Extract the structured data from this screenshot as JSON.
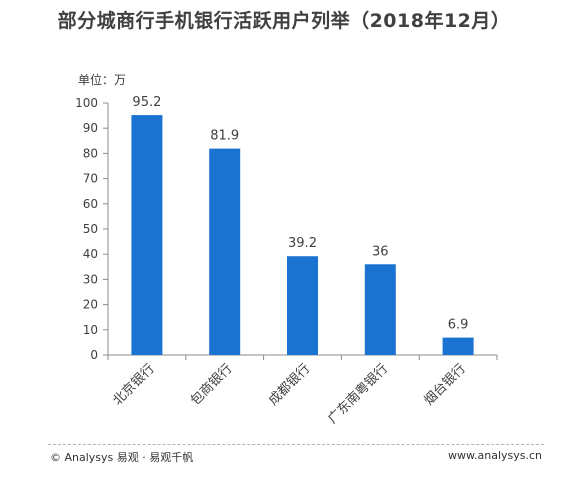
{
  "title": "部分城商行手机银行活跃用户列举（2018年12月）",
  "unit_label": "单位：万",
  "footer": {
    "left": "© Analysys 易观 · 易观千帆",
    "right": "www.analysys.cn"
  },
  "colors": {
    "bar": "#1b73d1",
    "axis": "#8c8c8c",
    "text": "#404040"
  },
  "chart_data": {
    "type": "bar",
    "title": "部分城商行手机银行活跃用户列举（2018年12月）",
    "ylabel": "单位：万",
    "categories": [
      "北京银行",
      "包商银行",
      "成都银行",
      "广东南粤银行",
      "烟台银行"
    ],
    "values": [
      95.2,
      81.9,
      39.2,
      36,
      6.9
    ],
    "data_labels": [
      "95.2",
      "81.9",
      "39.2",
      "36",
      "6.9"
    ],
    "ylim": [
      0,
      100
    ],
    "yticks": [
      "0",
      "10",
      "20",
      "30",
      "40",
      "50",
      "60",
      "70",
      "80",
      "90",
      "100"
    ],
    "grid": false,
    "legend": "none"
  }
}
